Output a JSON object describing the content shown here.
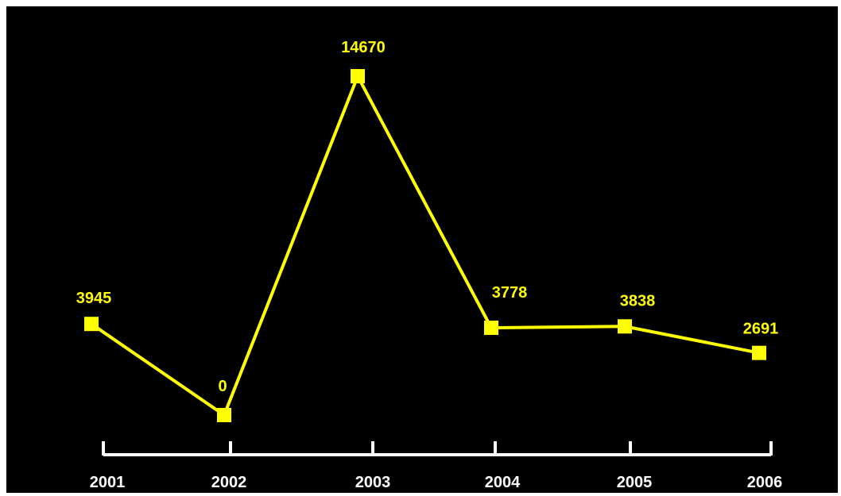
{
  "chart_data": {
    "type": "line",
    "title": "",
    "xlabel": "",
    "ylabel": "",
    "categories": [
      "2001",
      "2002",
      "2003",
      "2004",
      "2005",
      "2006"
    ],
    "series": [
      {
        "values": [
          3945,
          0,
          14670,
          3778,
          3838,
          2691
        ],
        "color": "#ffff00"
      }
    ],
    "data_labels": [
      "3945",
      "0",
      "14670",
      "3778",
      "3838",
      "2691"
    ],
    "ylim": [
      0,
      14670
    ],
    "grid": false,
    "legend": "none",
    "background_color": "#000000",
    "axis_color": "#ffffff",
    "tick_label_color": "#ffffff",
    "marker": "square"
  }
}
